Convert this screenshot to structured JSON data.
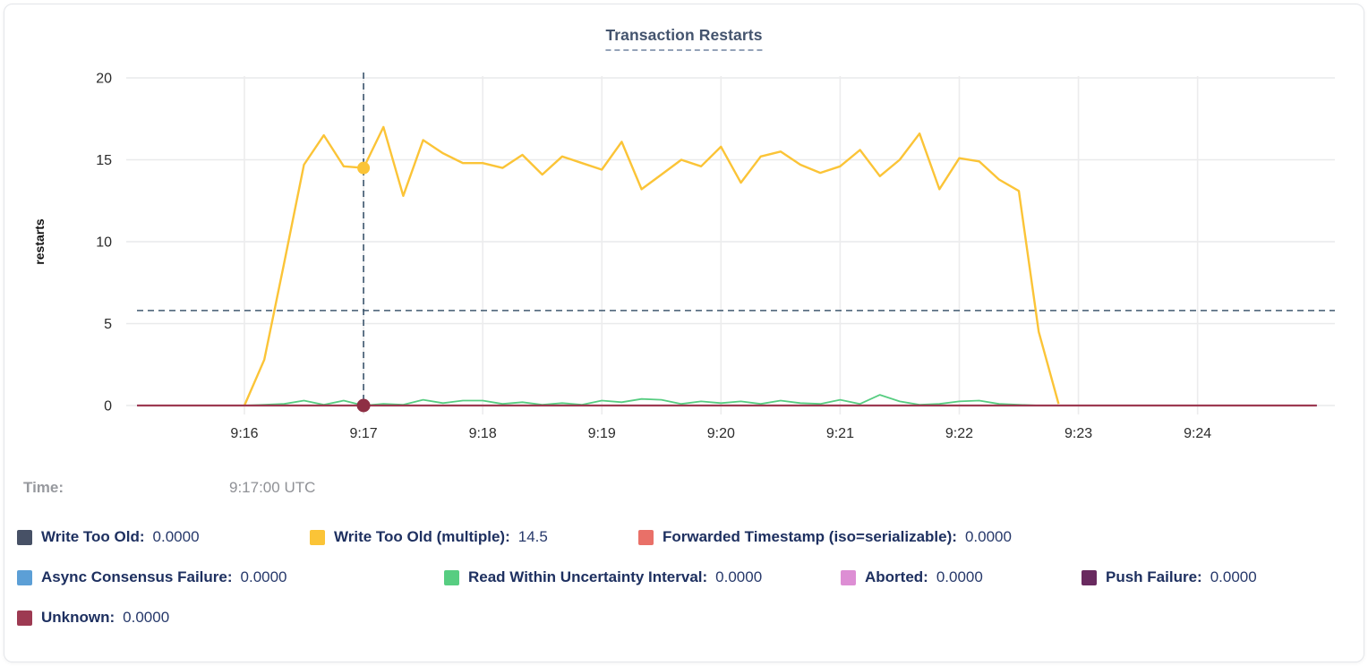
{
  "header": {
    "title": "Transaction Restarts"
  },
  "readout": {
    "time_label": "Time:",
    "time_value": "9:17:00 UTC"
  },
  "legend": {
    "items": [
      {
        "label": "Write Too Old:",
        "value": "0.0000",
        "color": "#475166"
      },
      {
        "label": "Write Too Old (multiple):",
        "value": "14.5",
        "color": "#fbc437"
      },
      {
        "label": "Forwarded Timestamp (iso=serializable):",
        "value": "0.0000",
        "color": "#e97068"
      },
      {
        "label": "Async Consensus Failure:",
        "value": "0.0000",
        "color": "#5c9fd6"
      },
      {
        "label": "Read Within Uncertainty Interval:",
        "value": "0.0000",
        "color": "#57cd81"
      },
      {
        "label": "Aborted:",
        "value": "0.0000",
        "color": "#dd8ed4"
      },
      {
        "label": "Push Failure:",
        "value": "0.0000",
        "color": "#692a5f"
      },
      {
        "label": "Unknown:",
        "value": "0.0000",
        "color": "#9d3a52"
      }
    ]
  },
  "chart_data": {
    "type": "line",
    "title": "Transaction Restarts",
    "ylabel": "restarts",
    "xlabel": "",
    "ylim": [
      0,
      20
    ],
    "yticks": [
      0,
      5,
      10,
      15,
      20
    ],
    "x_ticks": [
      {
        "t": 0,
        "label": "9:16"
      },
      {
        "t": 60,
        "label": "9:17"
      },
      {
        "t": 120,
        "label": "9:18"
      },
      {
        "t": 180,
        "label": "9:19"
      },
      {
        "t": 240,
        "label": "9:20"
      },
      {
        "t": 300,
        "label": "9:21"
      },
      {
        "t": 360,
        "label": "9:22"
      },
      {
        "t": 420,
        "label": "9:23"
      },
      {
        "t": 480,
        "label": "9:24"
      }
    ],
    "grid": true,
    "legend_position": "bottom",
    "crosshair": {
      "t": 60,
      "time": "9:17:00 UTC",
      "cursor_value": 5.8,
      "color": "#3f586f",
      "hover_points": [
        {
          "series": "Write Too Old (multiple)",
          "value": 14.5,
          "color": "#fbc437",
          "r": 7
        },
        {
          "series": "Unknown",
          "value": 0,
          "color": "#8e2f44",
          "r": 7.5
        }
      ]
    },
    "series": [
      {
        "name": "Write Too Old",
        "color": "#475166",
        "points": [
          [
            -54,
            0
          ],
          [
            540,
            0
          ]
        ]
      },
      {
        "name": "Forwarded Timestamp (iso=serializable)",
        "color": "#e97068",
        "points": [
          [
            -54,
            0
          ],
          [
            540,
            0
          ]
        ]
      },
      {
        "name": "Async Consensus Failure",
        "color": "#5c9fd6",
        "points": [
          [
            -54,
            0
          ],
          [
            540,
            0
          ]
        ]
      },
      {
        "name": "Aborted",
        "color": "#dd8ed4",
        "points": [
          [
            -54,
            0
          ],
          [
            540,
            0
          ]
        ]
      },
      {
        "name": "Push Failure",
        "color": "#692a5f",
        "points": [
          [
            -54,
            0
          ],
          [
            540,
            0
          ]
        ]
      },
      {
        "name": "Read Within Uncertainty Interval",
        "color": "#57cd81",
        "points": [
          [
            0,
            0
          ],
          [
            10,
            0.05
          ],
          [
            20,
            0.1
          ],
          [
            30,
            0.3
          ],
          [
            40,
            0.05
          ],
          [
            50,
            0.3
          ],
          [
            60,
            0
          ],
          [
            70,
            0.1
          ],
          [
            80,
            0.05
          ],
          [
            90,
            0.35
          ],
          [
            100,
            0.15
          ],
          [
            110,
            0.3
          ],
          [
            120,
            0.3
          ],
          [
            130,
            0.1
          ],
          [
            140,
            0.2
          ],
          [
            150,
            0.05
          ],
          [
            160,
            0.15
          ],
          [
            170,
            0.05
          ],
          [
            180,
            0.3
          ],
          [
            190,
            0.2
          ],
          [
            200,
            0.4
          ],
          [
            210,
            0.35
          ],
          [
            220,
            0.1
          ],
          [
            230,
            0.25
          ],
          [
            240,
            0.15
          ],
          [
            250,
            0.25
          ],
          [
            260,
            0.1
          ],
          [
            270,
            0.3
          ],
          [
            280,
            0.15
          ],
          [
            290,
            0.1
          ],
          [
            300,
            0.35
          ],
          [
            310,
            0.1
          ],
          [
            320,
            0.65
          ],
          [
            330,
            0.25
          ],
          [
            340,
            0.05
          ],
          [
            350,
            0.1
          ],
          [
            360,
            0.25
          ],
          [
            370,
            0.3
          ],
          [
            380,
            0.1
          ],
          [
            390,
            0.05
          ],
          [
            400,
            0
          ]
        ]
      },
      {
        "name": "Write Too Old (multiple)",
        "color": "#fbc437",
        "points": [
          [
            0,
            0
          ],
          [
            10,
            2.8
          ],
          [
            20,
            8.7
          ],
          [
            30,
            14.7
          ],
          [
            40,
            16.5
          ],
          [
            50,
            14.6
          ],
          [
            60,
            14.5
          ],
          [
            70,
            17
          ],
          [
            80,
            12.8
          ],
          [
            90,
            16.2
          ],
          [
            100,
            15.4
          ],
          [
            110,
            14.8
          ],
          [
            120,
            14.8
          ],
          [
            130,
            14.5
          ],
          [
            140,
            15.3
          ],
          [
            150,
            14.1
          ],
          [
            160,
            15.2
          ],
          [
            170,
            14.8
          ],
          [
            180,
            14.4
          ],
          [
            190,
            16.1
          ],
          [
            200,
            13.2
          ],
          [
            210,
            14.1
          ],
          [
            220,
            15
          ],
          [
            230,
            14.6
          ],
          [
            240,
            15.8
          ],
          [
            250,
            13.6
          ],
          [
            260,
            15.2
          ],
          [
            270,
            15.5
          ],
          [
            280,
            14.7
          ],
          [
            290,
            14.2
          ],
          [
            300,
            14.6
          ],
          [
            310,
            15.6
          ],
          [
            320,
            14
          ],
          [
            330,
            15
          ],
          [
            340,
            16.6
          ],
          [
            350,
            13.2
          ],
          [
            360,
            15.1
          ],
          [
            370,
            14.9
          ],
          [
            380,
            13.8
          ],
          [
            390,
            13.1
          ],
          [
            400,
            4.5
          ],
          [
            410,
            0.1
          ]
        ]
      },
      {
        "name": "Unknown",
        "color": "#9d3a52",
        "points": [
          [
            -54,
            0
          ],
          [
            540,
            0
          ]
        ]
      }
    ]
  }
}
